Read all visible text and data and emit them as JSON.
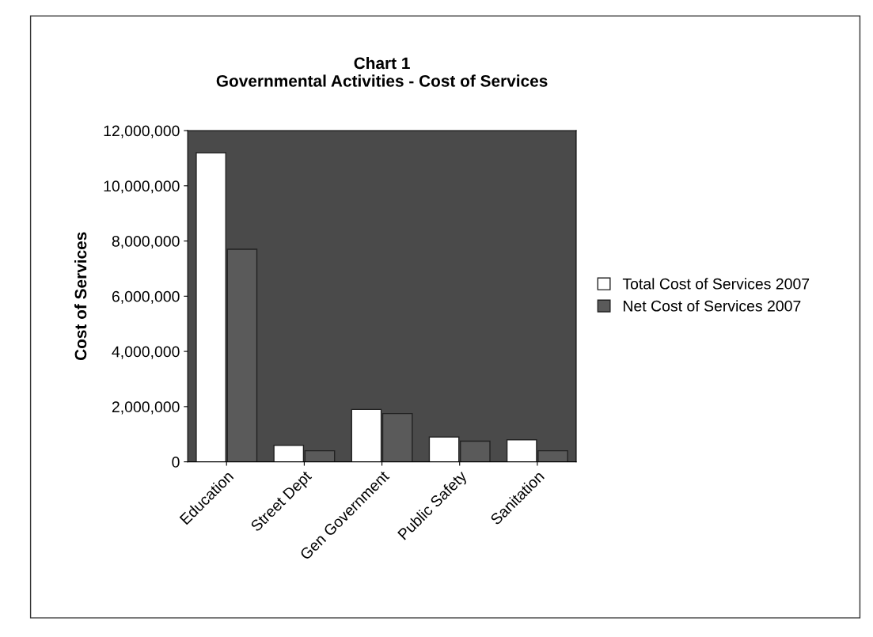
{
  "chart_data": {
    "type": "bar",
    "title": "Chart 1\nGovernmental Activities - Cost of Services",
    "ylabel": "Cost of Services",
    "categories": [
      "Education",
      "Street Dept",
      "Gen Government",
      "Public Safety",
      "Sanitation"
    ],
    "series": [
      {
        "name": "Total Cost of Services 2007",
        "color": "#ffffff",
        "values": [
          11200000,
          600000,
          1900000,
          900000,
          800000
        ]
      },
      {
        "name": "Net Cost of Services 2007",
        "color": "#5a5a5a",
        "values": [
          7700000,
          400000,
          1750000,
          750000,
          400000
        ]
      }
    ],
    "ylim": [
      0,
      12000000
    ],
    "yticks": [
      {
        "value": 0,
        "label": "0"
      },
      {
        "value": 2000000,
        "label": "2,000,000"
      },
      {
        "value": 4000000,
        "label": "4,000,000"
      },
      {
        "value": 6000000,
        "label": "6,000,000"
      },
      {
        "value": 8000000,
        "label": "8,000,000"
      },
      {
        "value": 10000000,
        "label": "10,000,000"
      },
      {
        "value": 12000000,
        "label": "12,000,000"
      }
    ],
    "grid": false,
    "legend": "right"
  }
}
